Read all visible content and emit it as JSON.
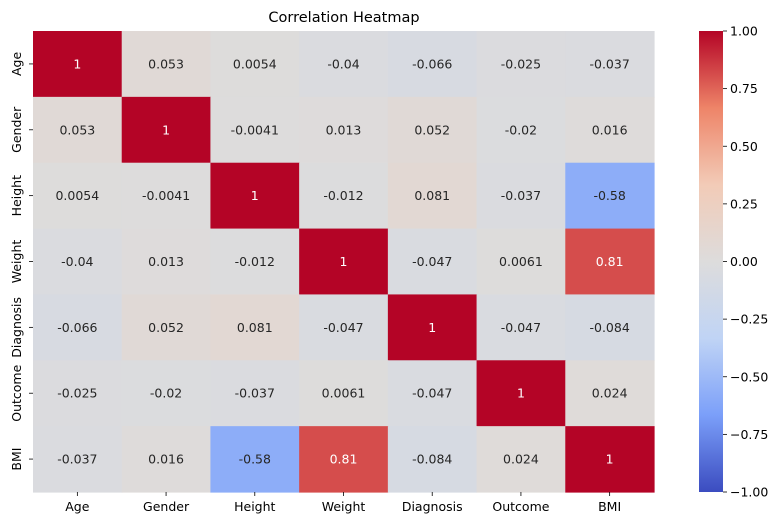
{
  "chart_data": {
    "type": "heatmap",
    "title": "Correlation Heatmap",
    "x_labels": [
      "Age",
      "Gender",
      "Height",
      "Weight",
      "Diagnosis",
      "Outcome",
      "BMI"
    ],
    "y_labels": [
      "Age",
      "Gender",
      "Height",
      "Weight",
      "Diagnosis",
      "Outcome",
      "BMI"
    ],
    "values": [
      [
        1,
        0.053,
        0.0054,
        -0.04,
        -0.066,
        -0.025,
        -0.037
      ],
      [
        0.053,
        1,
        -0.0041,
        0.013,
        0.052,
        -0.02,
        0.016
      ],
      [
        0.0054,
        -0.0041,
        1,
        -0.012,
        0.081,
        -0.037,
        -0.58
      ],
      [
        -0.04,
        0.013,
        -0.012,
        1,
        -0.047,
        0.0061,
        0.81
      ],
      [
        -0.066,
        0.052,
        0.081,
        -0.047,
        1,
        -0.047,
        -0.084
      ],
      [
        -0.025,
        -0.02,
        -0.037,
        0.0061,
        -0.047,
        1,
        0.024
      ],
      [
        -0.037,
        0.016,
        -0.58,
        0.81,
        -0.084,
        0.024,
        1
      ]
    ],
    "value_labels": [
      [
        "1",
        "0.053",
        "0.0054",
        "-0.04",
        "-0.066",
        "-0.025",
        "-0.037"
      ],
      [
        "0.053",
        "1",
        "-0.0041",
        "0.013",
        "0.052",
        "-0.02",
        "0.016"
      ],
      [
        "0.0054",
        "-0.0041",
        "1",
        "-0.012",
        "0.081",
        "-0.037",
        "-0.58"
      ],
      [
        "-0.04",
        "0.013",
        "-0.012",
        "1",
        "-0.047",
        "0.0061",
        "0.81"
      ],
      [
        "-0.066",
        "0.052",
        "0.081",
        "-0.047",
        "1",
        "-0.047",
        "-0.084"
      ],
      [
        "-0.025",
        "-0.02",
        "-0.037",
        "0.0061",
        "-0.047",
        "1",
        "0.024"
      ],
      [
        "-0.037",
        "0.016",
        "-0.58",
        "0.81",
        "-0.084",
        "0.024",
        "1"
      ]
    ],
    "vmin": -1.0,
    "vmax": 1.0,
    "colormap": "coolwarm",
    "colormap_stops": [
      "#3b4cc0",
      "#7b9ff9",
      "#c0d4f5",
      "#dddcdc",
      "#f2cbb7",
      "#ee8468",
      "#b40426"
    ],
    "colorbar_ticks": [
      1.0,
      0.75,
      0.5,
      0.25,
      0.0,
      -0.25,
      -0.5,
      -0.75,
      -1.0
    ],
    "colorbar_tick_labels": [
      "1.00",
      "0.75",
      "0.50",
      "0.25",
      "0.00",
      "−0.25",
      "−0.50",
      "−0.75",
      "−1.00"
    ],
    "legend": "colorbar-right",
    "grid": false
  }
}
